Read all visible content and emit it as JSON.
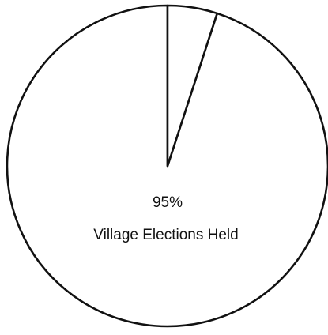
{
  "chart_data": {
    "type": "pie",
    "slices": [
      {
        "label": "Village Elections Held",
        "value": 95,
        "value_label": "95%"
      },
      {
        "label": "",
        "value": 5,
        "value_label": ""
      }
    ],
    "start": "top",
    "direction": "counterclockwise",
    "colors": {
      "fill": "#ffffff",
      "stroke": "#111111"
    }
  }
}
